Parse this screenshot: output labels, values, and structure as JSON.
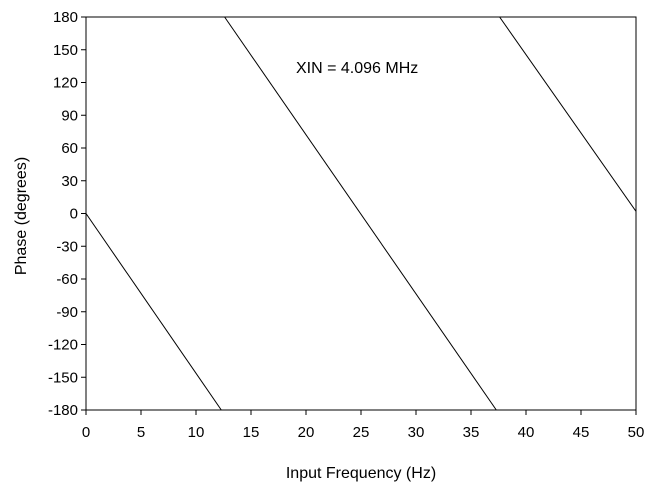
{
  "chart_data": {
    "type": "line",
    "title": "",
    "xlabel": "Input Frequency (Hz)",
    "ylabel": "Phase (degrees)",
    "xlim": [
      0,
      50
    ],
    "ylim": [
      -180,
      180
    ],
    "x_ticks": [
      0,
      5,
      10,
      15,
      20,
      25,
      30,
      35,
      40,
      45,
      50
    ],
    "x_tick_labels": [
      "0",
      "5",
      "10",
      "15",
      "20",
      "25",
      "30",
      "35",
      "40",
      "45",
      "50"
    ],
    "y_ticks": [
      180,
      150,
      120,
      90,
      60,
      30,
      0,
      -30,
      -60,
      -90,
      -120,
      -150,
      -180
    ],
    "y_tick_labels": [
      "180",
      "150",
      "120",
      "90",
      "60",
      "30",
      "0",
      "-30",
      "-60",
      "-90",
      "-120",
      "-150",
      "-180"
    ],
    "grid": false,
    "annotation": "XIN = 4.096 MHz",
    "line_color": "#000000",
    "series": [
      {
        "segments": [
          [
            [
              0,
              0
            ],
            [
              12.3,
              -180
            ]
          ],
          [
            [
              12.6,
              180
            ],
            [
              37.3,
              -180
            ]
          ],
          [
            [
              37.6,
              180
            ],
            [
              50,
              2
            ]
          ]
        ]
      }
    ]
  }
}
